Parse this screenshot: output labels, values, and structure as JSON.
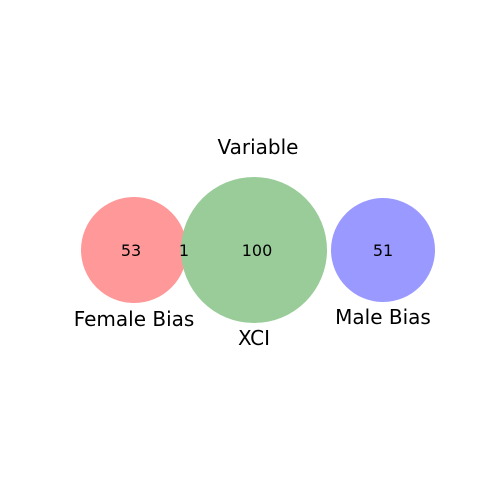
{
  "title": "Variable",
  "sets": [
    {
      "name": "Female Bias",
      "color": "#ff9999"
    },
    {
      "name": "XCI",
      "color": "#99cc99"
    },
    {
      "name": "Male Bias",
      "color": "#9999ff"
    }
  ],
  "counts": {
    "female_only": "53",
    "female_xci": "1",
    "xci_only": "100",
    "male_only": "51"
  }
}
